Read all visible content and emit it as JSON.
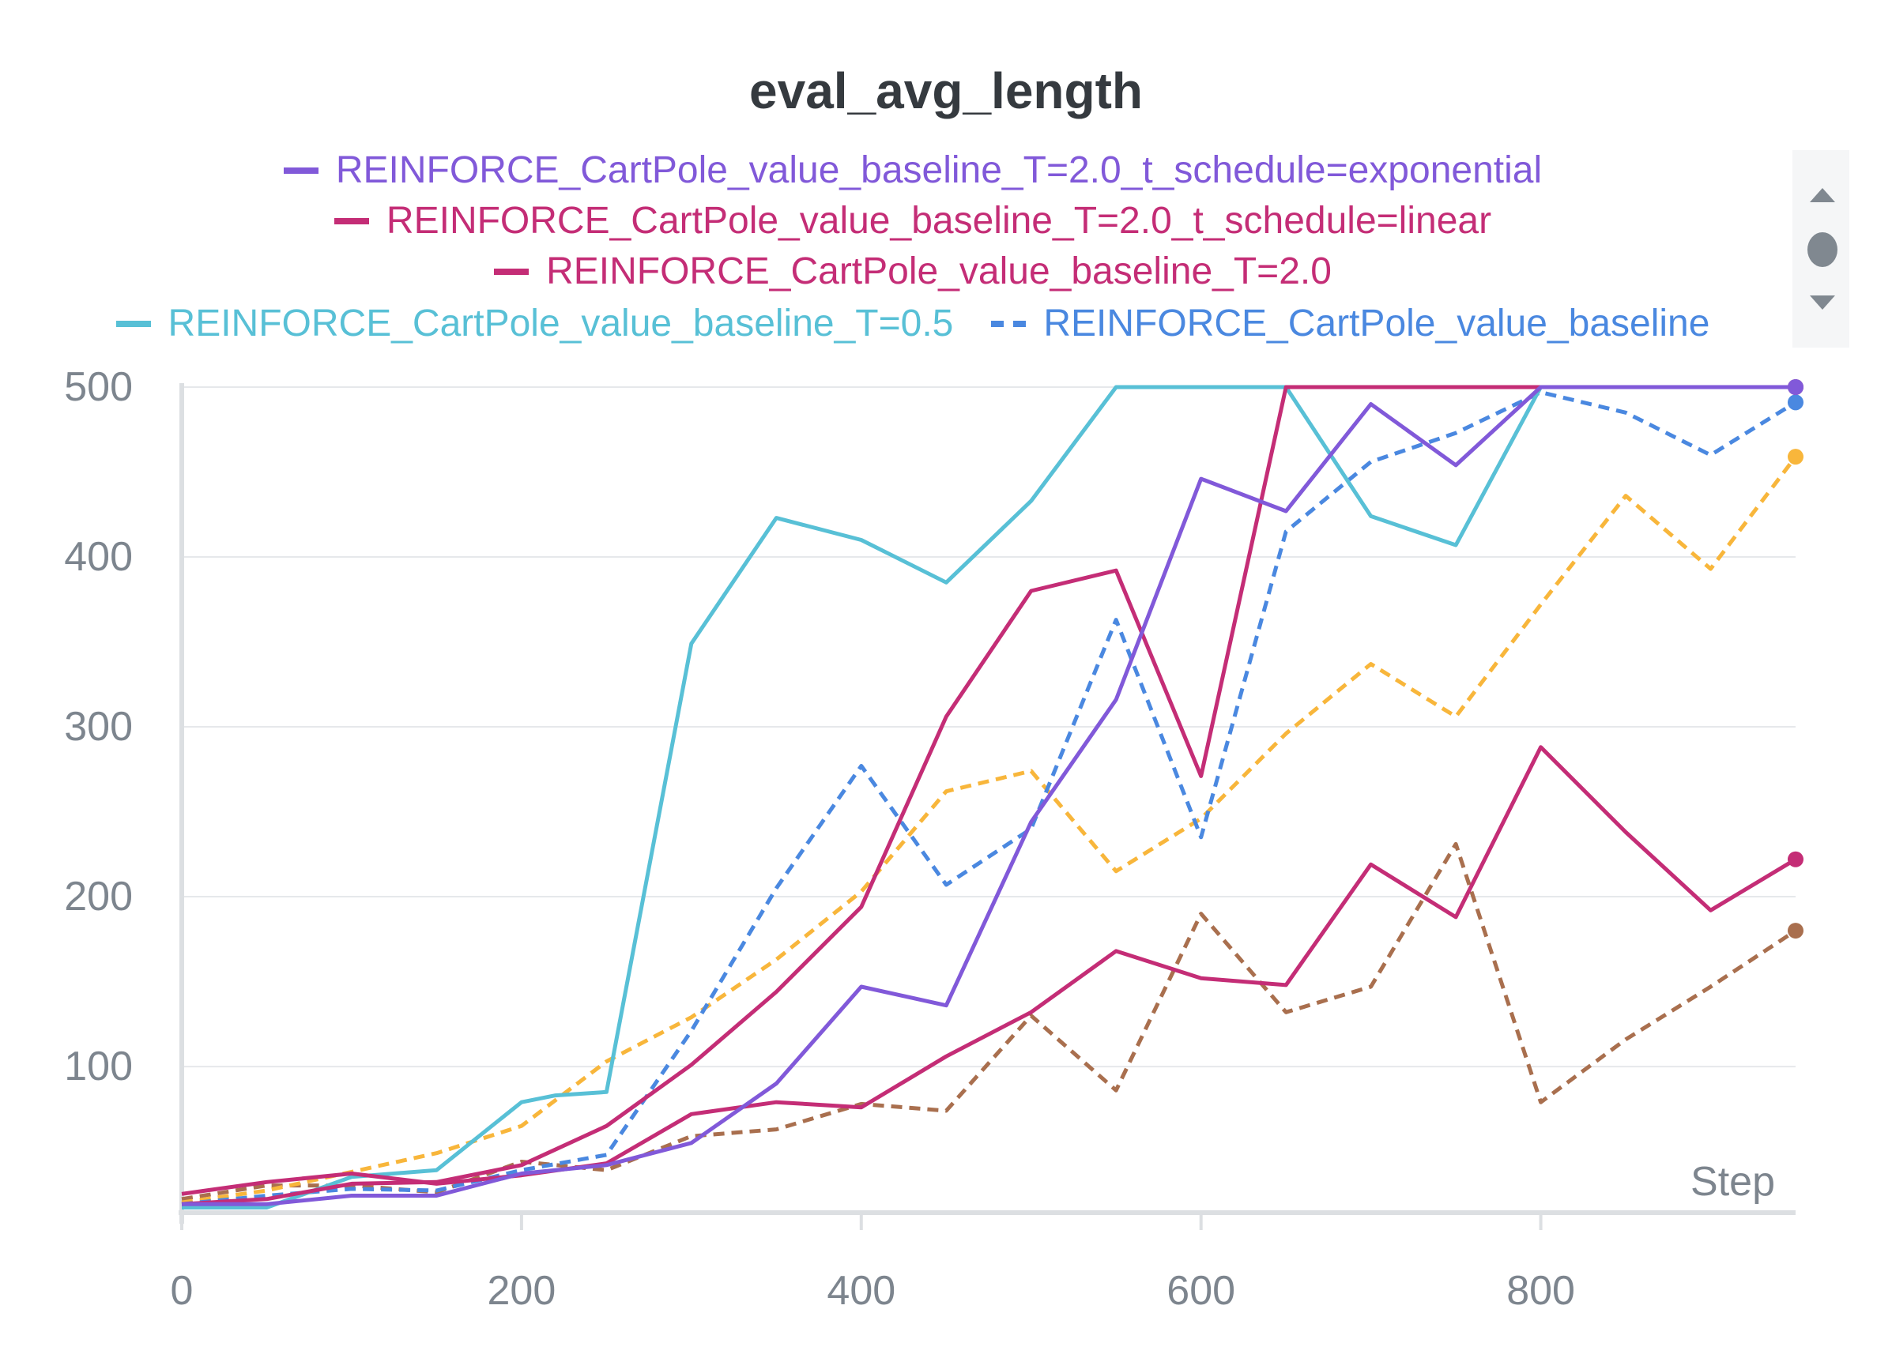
{
  "chart_data": {
    "type": "line",
    "title": "eval_avg_length",
    "xlabel": "Step",
    "ylabel": "",
    "xlim": [
      0,
      950
    ],
    "ylim": [
      14,
      500
    ],
    "xticks": [
      0,
      200,
      400,
      600,
      800
    ],
    "yticks": [
      100,
      200,
      300,
      400,
      500
    ],
    "grid": true,
    "legend_position": "top",
    "series": [
      {
        "name": "REINFORCE_CartPole_value_baseline_T=2.0_t_schedule=exponential",
        "color": "#8159d9",
        "dash": false,
        "in_legend": true,
        "x": [
          0,
          50,
          100,
          150,
          200,
          250,
          300,
          350,
          400,
          450,
          500,
          550,
          600,
          650,
          700,
          750,
          800,
          850,
          900,
          950
        ],
        "y": [
          19,
          19,
          24,
          24,
          37,
          42,
          55,
          90,
          147,
          136,
          244,
          316,
          446,
          427,
          490,
          454,
          500,
          500,
          500,
          500
        ]
      },
      {
        "name": "REINFORCE_CartPole_value_baseline_T=2.0_t_schedule=linear",
        "color": "#c42d76",
        "dash": false,
        "in_legend": true,
        "x": [
          0,
          50,
          100,
          150,
          200,
          250,
          300,
          350,
          400,
          450,
          500,
          550,
          600,
          650,
          700,
          750,
          800,
          850,
          900,
          950
        ],
        "y": [
          19,
          22,
          31,
          32,
          42,
          65,
          101,
          144,
          194,
          306,
          380,
          392,
          271,
          500,
          500,
          500,
          500,
          500,
          500,
          500
        ]
      },
      {
        "name": "REINFORCE_CartPole_value_baseline_T=2.0",
        "color": "#c42d76",
        "dash": false,
        "in_legend": true,
        "x": [
          0,
          50,
          100,
          150,
          200,
          250,
          300,
          350,
          400,
          450,
          500,
          550,
          600,
          650,
          700,
          750,
          800,
          850,
          900,
          950
        ],
        "y": [
          25,
          32,
          37,
          31,
          36,
          43,
          72,
          79,
          76,
          106,
          132,
          168,
          152,
          148,
          219,
          188,
          288,
          238,
          192,
          222
        ]
      },
      {
        "name": "REINFORCE_CartPole_value_baseline_T=0.5",
        "color": "#58c0d6",
        "dash": false,
        "in_legend": true,
        "x": [
          0,
          50,
          100,
          150,
          200,
          220,
          250,
          300,
          350,
          400,
          450,
          500,
          550,
          600,
          650,
          700,
          750,
          800,
          850,
          900,
          950
        ],
        "y": [
          17,
          17,
          35,
          39,
          79,
          83,
          85,
          349,
          423,
          410,
          385,
          433,
          500,
          500,
          500,
          424,
          407,
          500,
          500,
          500,
          500
        ]
      },
      {
        "name": "REINFORCE_CartPole_value_baseline",
        "color": "#4a88e0",
        "dash": true,
        "in_legend": true,
        "x": [
          0,
          50,
          100,
          150,
          200,
          250,
          300,
          350,
          400,
          450,
          500,
          550,
          600,
          650,
          700,
          750,
          800,
          850,
          900,
          950
        ],
        "y": [
          19,
          24,
          28,
          27,
          39,
          48,
          121,
          205,
          277,
          207,
          240,
          363,
          235,
          415,
          456,
          473,
          497,
          485,
          460,
          491
        ]
      },
      {
        "name": "",
        "color": "#f8b63b",
        "dash": true,
        "in_legend": false,
        "x": [
          0,
          50,
          100,
          150,
          200,
          250,
          300,
          350,
          400,
          450,
          500,
          550,
          600,
          650,
          700,
          750,
          800,
          850,
          900,
          950
        ],
        "y": [
          20,
          27,
          38,
          49,
          65,
          103,
          129,
          163,
          203,
          262,
          274,
          215,
          246,
          296,
          337,
          306,
          372,
          436,
          393,
          459
        ]
      },
      {
        "name": "",
        "color": "#a96f4e",
        "dash": true,
        "in_legend": false,
        "x": [
          0,
          50,
          100,
          150,
          200,
          250,
          300,
          350,
          400,
          450,
          500,
          550,
          600,
          650,
          700,
          750,
          800,
          850,
          900,
          950
        ],
        "y": [
          22,
          30,
          30,
          26,
          44,
          39,
          59,
          63,
          78,
          74,
          130,
          86,
          190,
          132,
          147,
          231,
          79,
          116,
          147,
          180
        ]
      }
    ]
  },
  "legend_rows": [
    [
      0
    ],
    [
      1
    ],
    [
      2
    ],
    [
      3,
      4
    ]
  ]
}
